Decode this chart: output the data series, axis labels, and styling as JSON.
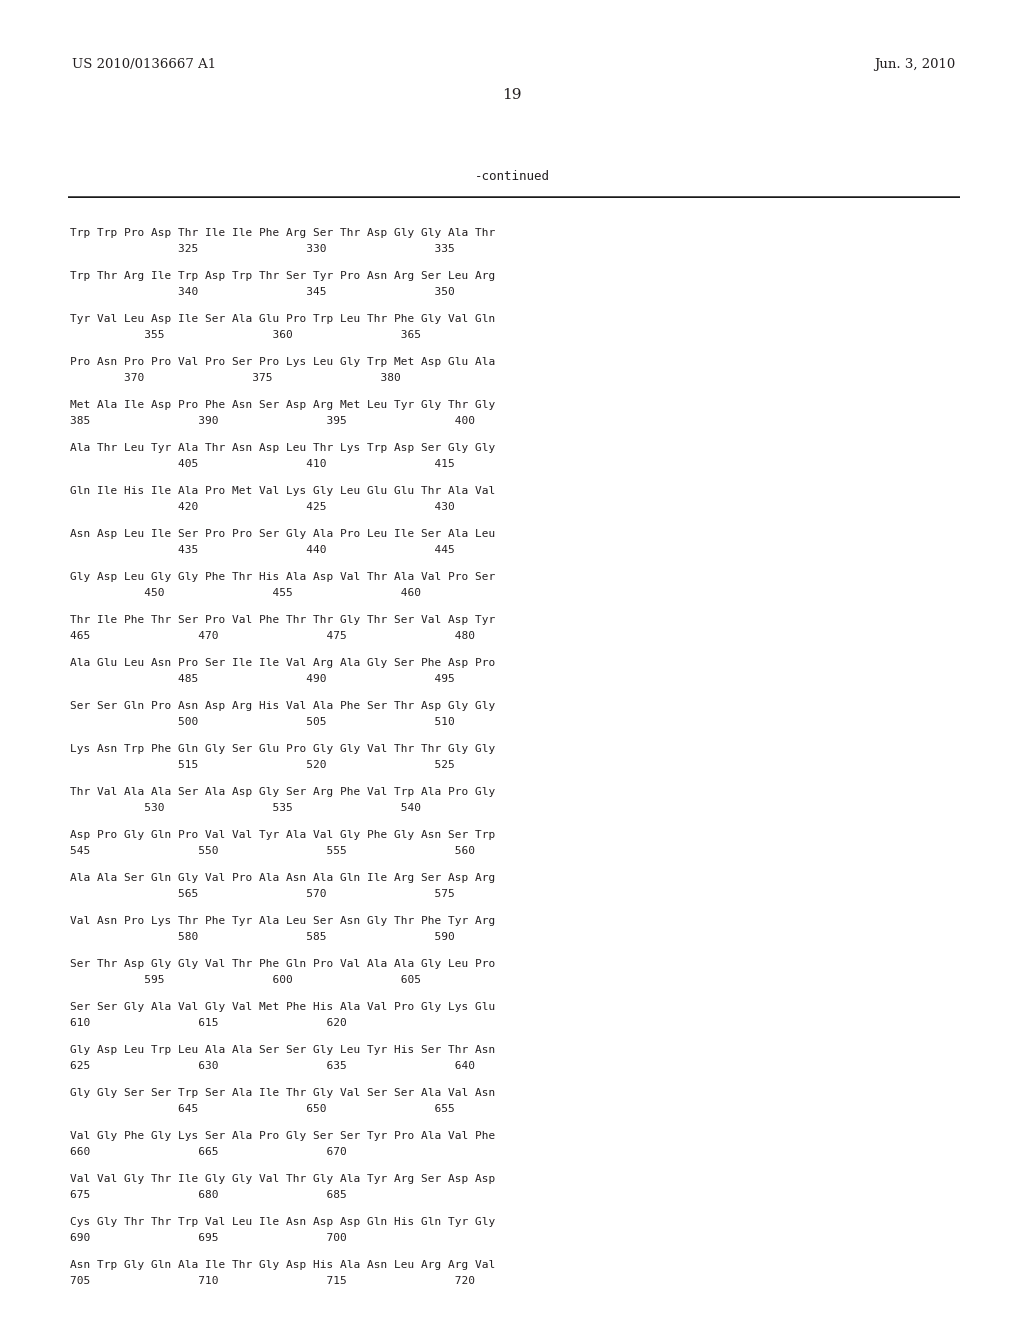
{
  "header_left": "US 2010/0136667 A1",
  "header_right": "Jun. 3, 2010",
  "page_number": "19",
  "continued_label": "-continued",
  "background_color": "#ffffff",
  "text_color": "#231f20",
  "sequence_data": [
    [
      "Trp Trp Pro Asp Thr Ile Ile Phe Arg Ser Thr Asp Gly Gly Ala Thr",
      "                325                330                335"
    ],
    [
      "Trp Thr Arg Ile Trp Asp Trp Thr Ser Tyr Pro Asn Arg Ser Leu Arg",
      "                340                345                350"
    ],
    [
      "Tyr Val Leu Asp Ile Ser Ala Glu Pro Trp Leu Thr Phe Gly Val Gln",
      "           355                360                365"
    ],
    [
      "Pro Asn Pro Pro Val Pro Ser Pro Lys Leu Gly Trp Met Asp Glu Ala",
      "        370                375                380"
    ],
    [
      "Met Ala Ile Asp Pro Phe Asn Ser Asp Arg Met Leu Tyr Gly Thr Gly",
      "385                390                395                400"
    ],
    [
      "Ala Thr Leu Tyr Ala Thr Asn Asp Leu Thr Lys Trp Asp Ser Gly Gly",
      "                405                410                415"
    ],
    [
      "Gln Ile His Ile Ala Pro Met Val Lys Gly Leu Glu Glu Thr Ala Val",
      "                420                425                430"
    ],
    [
      "Asn Asp Leu Ile Ser Pro Pro Ser Gly Ala Pro Leu Ile Ser Ala Leu",
      "                435                440                445"
    ],
    [
      "Gly Asp Leu Gly Gly Phe Thr His Ala Asp Val Thr Ala Val Pro Ser",
      "           450                455                460"
    ],
    [
      "Thr Ile Phe Thr Ser Pro Val Phe Thr Thr Gly Thr Ser Val Asp Tyr",
      "465                470                475                480"
    ],
    [
      "Ala Glu Leu Asn Pro Ser Ile Ile Val Arg Ala Gly Ser Phe Asp Pro",
      "                485                490                495"
    ],
    [
      "Ser Ser Gln Pro Asn Asp Arg His Val Ala Phe Ser Thr Asp Gly Gly",
      "                500                505                510"
    ],
    [
      "Lys Asn Trp Phe Gln Gly Ser Glu Pro Gly Gly Val Thr Thr Gly Gly",
      "                515                520                525"
    ],
    [
      "Thr Val Ala Ala Ser Ala Asp Gly Ser Arg Phe Val Trp Ala Pro Gly",
      "           530                535                540"
    ],
    [
      "Asp Pro Gly Gln Pro Val Val Tyr Ala Val Gly Phe Gly Asn Ser Trp",
      "545                550                555                560"
    ],
    [
      "Ala Ala Ser Gln Gly Val Pro Ala Asn Ala Gln Ile Arg Ser Asp Arg",
      "                565                570                575"
    ],
    [
      "Val Asn Pro Lys Thr Phe Tyr Ala Leu Ser Asn Gly Thr Phe Tyr Arg",
      "                580                585                590"
    ],
    [
      "Ser Thr Asp Gly Gly Val Thr Phe Gln Pro Val Ala Ala Gly Leu Pro",
      "           595                600                605"
    ],
    [
      "Ser Ser Gly Ala Val Gly Val Met Phe His Ala Val Pro Gly Lys Glu",
      "610                615                620"
    ],
    [
      "Gly Asp Leu Trp Leu Ala Ala Ser Ser Gly Leu Tyr His Ser Thr Asn",
      "625                630                635                640"
    ],
    [
      "Gly Gly Ser Ser Trp Ser Ala Ile Thr Gly Val Ser Ser Ala Val Asn",
      "                645                650                655"
    ],
    [
      "Val Gly Phe Gly Lys Ser Ala Pro Gly Ser Ser Tyr Pro Ala Val Phe",
      "660                665                670"
    ],
    [
      "Val Val Gly Thr Ile Gly Gly Val Thr Gly Ala Tyr Arg Ser Asp Asp",
      "675                680                685"
    ],
    [
      "Cys Gly Thr Thr Trp Val Leu Ile Asn Asp Asp Gln His Gln Tyr Gly",
      "690                695                700"
    ],
    [
      "Asn Trp Gly Gln Ala Ile Thr Gly Asp His Ala Asn Leu Arg Arg Val",
      "705                710                715                720"
    ]
  ]
}
